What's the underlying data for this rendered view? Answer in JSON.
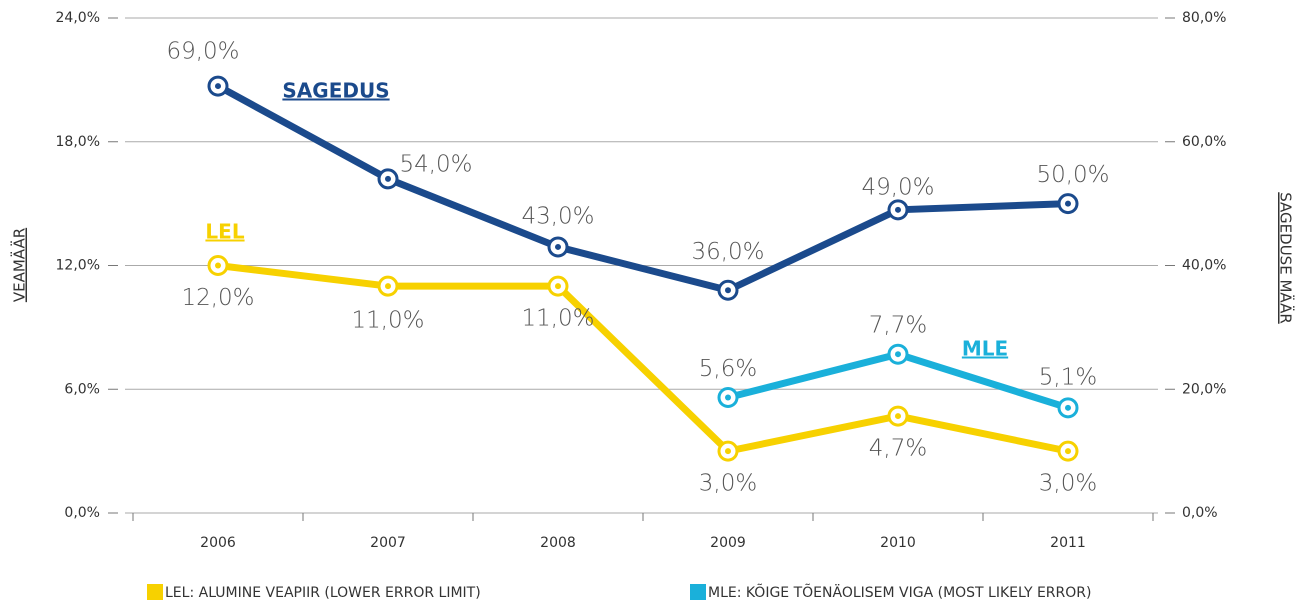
{
  "chart_data": {
    "type": "line",
    "categories": [
      "2006",
      "2007",
      "2008",
      "2009",
      "2010",
      "2011"
    ],
    "series": [
      {
        "name": "LEL",
        "legend_label": "LEL: ALUMINE VEAPIIR (LOWER ERROR LIMIT)",
        "color": "#f7d100",
        "axis": "y",
        "values": [
          12,
          11,
          11,
          3,
          4.7,
          3
        ],
        "value_labels": [
          "12,0%",
          "11,0%",
          "11,0%",
          "3,0%",
          "4,7%",
          "3,0%"
        ]
      },
      {
        "name": "MLE",
        "legend_label": "MLE: KÕIGE TÕENÄOLISEM VIGA (MOST LIKELY ERROR)",
        "color": "#1ab0da",
        "axis": "y",
        "values": [
          null,
          null,
          null,
          5.6,
          7.7,
          5.1
        ],
        "value_labels": [
          null,
          null,
          null,
          "5,6%",
          "7,7%",
          "5,1%"
        ]
      },
      {
        "name": "SAGEDUS",
        "color": "#1b4a8c",
        "axis": "y2",
        "values": [
          69,
          54,
          43,
          36,
          49,
          50
        ],
        "value_labels": [
          "69,0%",
          "54,0%",
          "43,0%",
          "36,0%",
          "49,0%",
          "50,0%"
        ]
      }
    ],
    "ylabel": "VEAMÄÄR",
    "y2label": "SAGEDUSE MÄÄR",
    "ylim": [
      0,
      24
    ],
    "yticks": [
      {
        "value": 0,
        "label": "0,0%"
      },
      {
        "value": 6,
        "label": "6,0%"
      },
      {
        "value": 12,
        "label": "12,0%"
      },
      {
        "value": 18,
        "label": "18,0%"
      },
      {
        "value": 24,
        "label": "24,0%"
      }
    ],
    "y2lim": [
      0,
      80
    ],
    "y2ticks": [
      {
        "value": 0,
        "label": "0,0%"
      },
      {
        "value": 20,
        "label": "20,0%"
      },
      {
        "value": 40,
        "label": "40,0%"
      },
      {
        "value": 60,
        "label": "60,0%"
      },
      {
        "value": 80,
        "label": "80,0%"
      }
    ],
    "grid": true
  }
}
